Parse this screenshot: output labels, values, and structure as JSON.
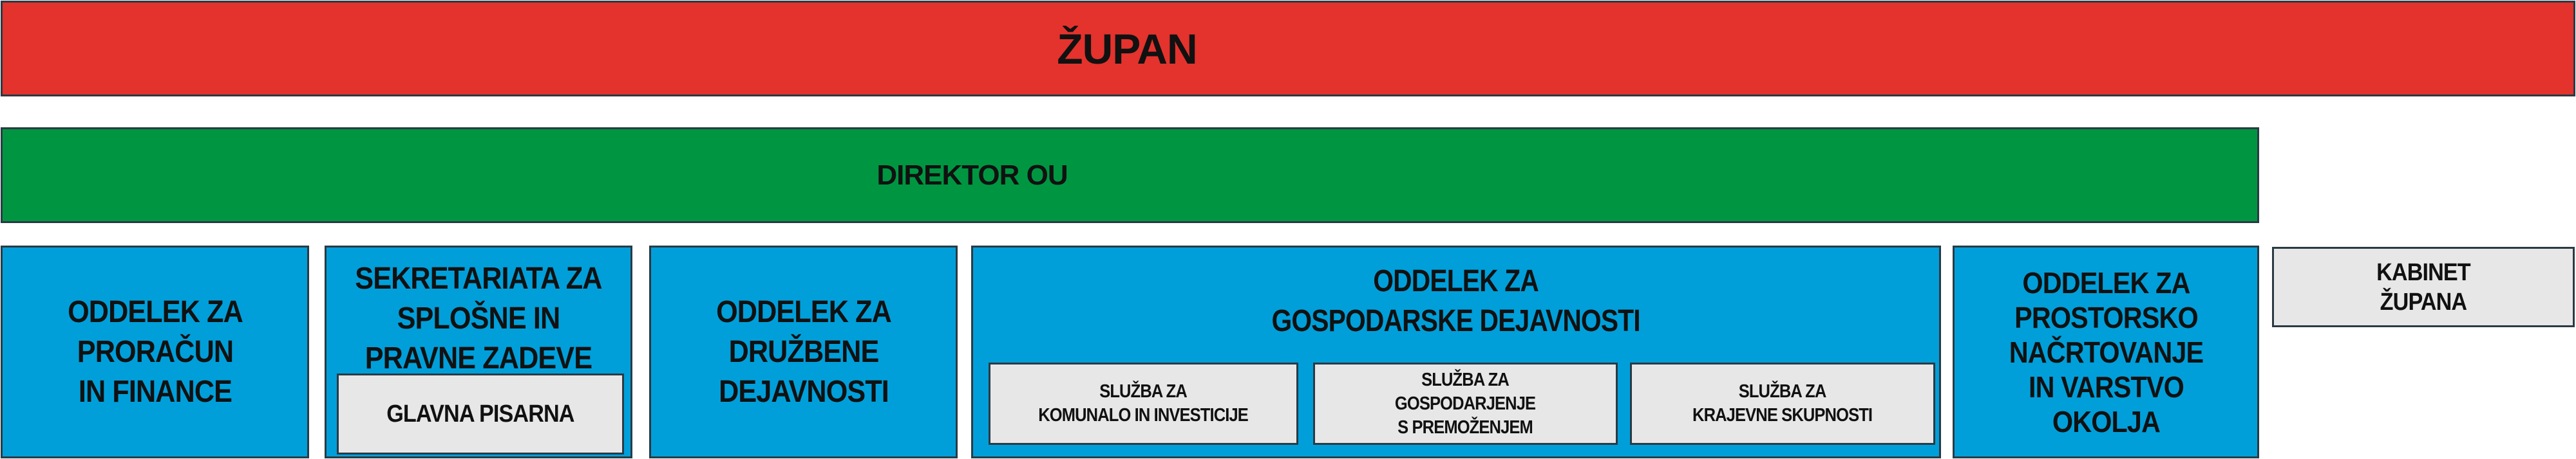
{
  "colors": {
    "top": "#e4322d",
    "director": "#009641",
    "department": "#009fda",
    "service": "#e8e7e7"
  },
  "top": {
    "title": "ŽUPAN"
  },
  "director": {
    "title": "DIREKTOR OU"
  },
  "departments": [
    {
      "title": "ODDELEK ZA\nPRORAČUN\nIN FINANCE"
    },
    {
      "title": "SEKRETARIATA ZA\nSPLOŠNE IN\nPRAVNE ZADEVE",
      "units": [
        "GLAVNA PISARNA"
      ]
    },
    {
      "title": "ODDELEK ZA\nDRUŽBENE\nDEJAVNOSTI"
    },
    {
      "title": "ODDELEK ZA\nGOSPODARSKE DEJAVNOSTI",
      "units": [
        "SLUŽBA ZA\nKOMUNALO IN INVESTICIJE",
        "SLUŽBA ZA\nGOSPODARJENJE\nS PREMOŽENJEM",
        "SLUŽBA ZA\nKRAJEVNE SKUPNOSTI"
      ]
    },
    {
      "title": "ODDELEK ZA\nPROSTORSKO\nNAČRTOVANJE\nIN VARSTVO\nOKOLJA"
    }
  ],
  "cabinet": {
    "title": "KABINET\nŽUPANA"
  }
}
